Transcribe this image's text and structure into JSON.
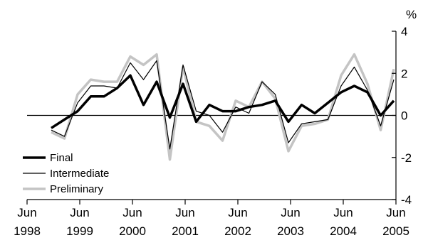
{
  "chart_data": {
    "type": "line",
    "title": "",
    "xlabel": "",
    "ylabel": "",
    "y_unit": "%",
    "ylim": [
      -4,
      4
    ],
    "y_ticks": [
      -4,
      -2,
      0,
      2,
      4
    ],
    "y_tick_labels": [
      "-4",
      "-2",
      "0",
      "2",
      "4"
    ],
    "y_axis_side": "right",
    "xlim": [
      1998.5,
      2005.5
    ],
    "x_ticks": [
      {
        "value": 1998.5,
        "line1": "Jun",
        "line2": "1998"
      },
      {
        "value": 1999.5,
        "line1": "Jun",
        "line2": "1999"
      },
      {
        "value": 2000.5,
        "line1": "Jun",
        "line2": "2000"
      },
      {
        "value": 2001.5,
        "line1": "Jun",
        "line2": "2001"
      },
      {
        "value": 2002.5,
        "line1": "Jun",
        "line2": "2002"
      },
      {
        "value": 2003.5,
        "line1": "Jun",
        "line2": "2003"
      },
      {
        "value": 2004.5,
        "line1": "Jun",
        "line2": "2004"
      },
      {
        "value": 2005.5,
        "line1": "Jun",
        "line2": "2005"
      }
    ],
    "zero_line": true,
    "grid": false,
    "legend_position": "bottom-left",
    "x": [
      1998.96,
      1999.21,
      1999.46,
      1999.71,
      1999.96,
      2000.21,
      2000.46,
      2000.71,
      2000.96,
      2001.21,
      2001.46,
      2001.71,
      2001.96,
      2002.21,
      2002.46,
      2002.71,
      2002.96,
      2003.21,
      2003.46,
      2003.71,
      2003.96,
      2004.21,
      2004.46,
      2004.71,
      2004.96,
      2005.21,
      2005.46
    ],
    "series": [
      {
        "name": "Preliminary",
        "color": "#c4c4c4",
        "width": 3.5,
        "values": [
          -0.8,
          -1.1,
          1.0,
          1.7,
          1.6,
          1.6,
          2.8,
          2.4,
          2.9,
          -2.1,
          2.3,
          -0.3,
          -0.5,
          -1.2,
          0.7,
          0.4,
          1.6,
          0.8,
          -1.7,
          -0.5,
          -0.4,
          -0.2,
          1.9,
          2.9,
          1.5,
          -0.7,
          2.2
        ]
      },
      {
        "name": "Intermediate",
        "color": "#000000",
        "width": 1.2,
        "values": [
          -0.7,
          -1.0,
          0.6,
          1.4,
          1.4,
          1.3,
          2.5,
          1.7,
          2.6,
          -1.6,
          2.4,
          0.2,
          0.0,
          -0.8,
          0.4,
          0.1,
          1.6,
          1.0,
          -1.3,
          -0.4,
          -0.3,
          -0.2,
          1.4,
          2.3,
          1.2,
          -0.5,
          1.7
        ]
      },
      {
        "name": "Final",
        "color": "#000000",
        "width": 3.5,
        "values": [
          -0.6,
          -0.2,
          0.2,
          0.9,
          0.9,
          1.3,
          1.9,
          0.5,
          1.6,
          -0.1,
          1.5,
          -0.3,
          0.5,
          0.2,
          0.2,
          0.4,
          0.5,
          0.7,
          -0.3,
          0.5,
          0.1,
          0.6,
          1.1,
          1.4,
          1.1,
          0.0,
          0.7
        ]
      }
    ],
    "legend_order": [
      "Final",
      "Intermediate",
      "Preliminary"
    ]
  }
}
